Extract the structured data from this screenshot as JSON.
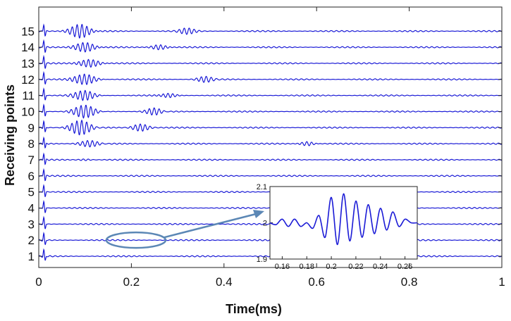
{
  "chart_data": [
    {
      "type": "line",
      "title": "",
      "xlabel": "Time(ms)",
      "ylabel": "Receiving points",
      "xlim": [
        0,
        1
      ],
      "ylim": [
        0.3,
        16.5
      ],
      "x_ticks": [
        "0",
        "0.2",
        "0.4",
        "0.6",
        "0.8",
        "1"
      ],
      "y_ticks": [
        "1",
        "2",
        "3",
        "4",
        "5",
        "6",
        "7",
        "8",
        "9",
        "10",
        "11",
        "12",
        "13",
        "14",
        "15"
      ],
      "grid": false,
      "line_color": "#1a1ad6",
      "series": [
        {
          "trace": 1,
          "baseline": 1,
          "strong_packets": []
        },
        {
          "trace": 2,
          "baseline": 2,
          "strong_packets": []
        },
        {
          "trace": 3,
          "baseline": 3,
          "strong_packets": []
        },
        {
          "trace": 4,
          "baseline": 4,
          "strong_packets": []
        },
        {
          "trace": 5,
          "baseline": 5,
          "strong_packets": []
        },
        {
          "trace": 6,
          "baseline": 6,
          "strong_packets": []
        },
        {
          "trace": 7,
          "baseline": 7,
          "strong_packets": [
            [
              0.1,
              0.08,
              0.2
            ]
          ]
        },
        {
          "trace": 8,
          "baseline": 8,
          "strong_packets": [
            [
              0.11,
              0.35,
              0.6
            ],
            [
              0.58,
              0.25,
              0.3
            ]
          ]
        },
        {
          "trace": 9,
          "baseline": 9,
          "strong_packets": [
            [
              0.09,
              0.8,
              0.6
            ],
            [
              0.22,
              0.4,
              0.4
            ]
          ]
        },
        {
          "trace": 10,
          "baseline": 10,
          "strong_packets": [
            [
              0.1,
              0.7,
              0.65
            ],
            [
              0.25,
              0.4,
              0.4
            ]
          ]
        },
        {
          "trace": 11,
          "baseline": 11,
          "strong_packets": [
            [
              0.1,
              0.55,
              0.6
            ],
            [
              0.28,
              0.3,
              0.4
            ]
          ]
        },
        {
          "trace": 12,
          "baseline": 12,
          "strong_packets": [
            [
              0.1,
              0.6,
              0.6
            ],
            [
              0.36,
              0.3,
              0.4
            ]
          ]
        },
        {
          "trace": 13,
          "baseline": 13,
          "strong_packets": [
            [
              0.11,
              0.45,
              0.6
            ]
          ]
        },
        {
          "trace": 14,
          "baseline": 14,
          "strong_packets": [
            [
              0.1,
              0.55,
              0.6
            ],
            [
              0.26,
              0.3,
              0.4
            ]
          ]
        },
        {
          "trace": 15,
          "baseline": 15,
          "strong_packets": [
            [
              0.09,
              0.8,
              0.6
            ],
            [
              0.32,
              0.3,
              0.4
            ]
          ]
        }
      ],
      "annotation": {
        "type": "ellipse",
        "trace": 2,
        "x_center": 0.21
      }
    },
    {
      "type": "line",
      "title": "",
      "xlim": [
        0.15,
        0.27
      ],
      "ylim": [
        1.9,
        2.1
      ],
      "x_ticks": [
        "0.16",
        "0.18",
        "0.2",
        "0.22",
        "0.24",
        "0.26"
      ],
      "y_ticks": [
        "1.9",
        "2",
        "2.1"
      ],
      "series": [
        {
          "x": [
            0.15,
            0.155,
            0.16,
            0.165,
            0.17,
            0.175,
            0.18,
            0.185,
            0.19,
            0.195,
            0.2,
            0.205,
            0.21,
            0.215,
            0.22,
            0.225,
            0.23,
            0.235,
            0.24,
            0.245,
            0.25,
            0.255,
            0.26,
            0.265,
            0.27
          ],
          "y": [
            2.0,
            1.995,
            2.01,
            1.99,
            2.01,
            1.99,
            2.0,
            1.985,
            2.02,
            1.96,
            2.07,
            1.94,
            2.08,
            1.95,
            2.06,
            1.96,
            2.05,
            1.97,
            2.04,
            1.98,
            2.03,
            1.99,
            2.01,
            2.0,
            2.0
          ]
        }
      ]
    }
  ]
}
